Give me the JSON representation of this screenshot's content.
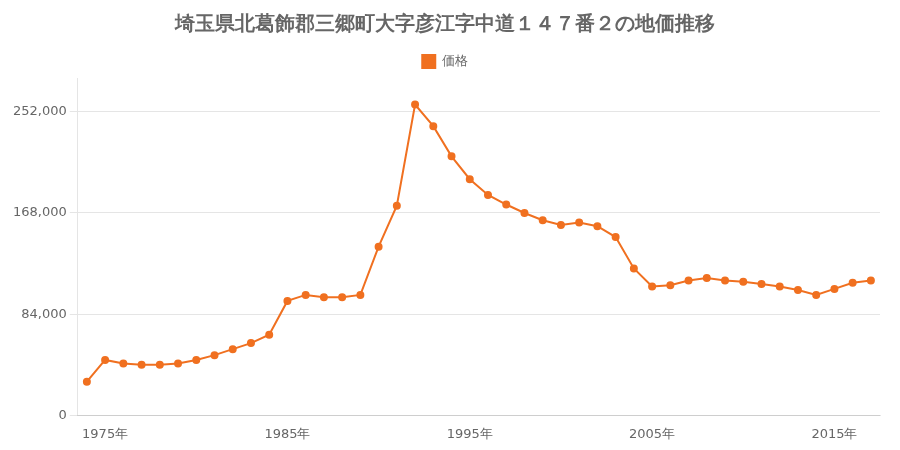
{
  "chart_data": {
    "type": "line",
    "title": "埼玉県北葛飾郡三郷町大字彦江字中道１４７番２の地価推移",
    "x": [
      1974,
      1975,
      1976,
      1977,
      1978,
      1979,
      1980,
      1981,
      1982,
      1983,
      1984,
      1985,
      1986,
      1987,
      1988,
      1989,
      1990,
      1991,
      1992,
      1993,
      1994,
      1995,
      1996,
      1997,
      1998,
      1999,
      2000,
      2001,
      2002,
      2003,
      2004,
      2005,
      2006,
      2007,
      2008,
      2009,
      2010,
      2011,
      2012,
      2013,
      2014,
      2015,
      2016,
      2017
    ],
    "series": [
      {
        "name": "価格",
        "color": "#f07020",
        "marker": "circle",
        "line_style": "solid",
        "values": [
          28000,
          46000,
          43000,
          42000,
          42000,
          43000,
          46000,
          50000,
          55000,
          60000,
          67000,
          95000,
          100000,
          98000,
          98000,
          100000,
          140000,
          174000,
          258000,
          240000,
          215000,
          196000,
          183000,
          175000,
          168000,
          162000,
          158000,
          160000,
          157000,
          148000,
          122000,
          107000,
          108000,
          112000,
          114000,
          112000,
          111000,
          109000,
          107000,
          104000,
          100000,
          105000,
          110000,
          112000
        ]
      }
    ],
    "xlim": [
      1973.5,
      2017.5
    ],
    "xticks": [
      {
        "value": 1975,
        "label": "1975年"
      },
      {
        "value": 1985,
        "label": "1985年"
      },
      {
        "value": 1995,
        "label": "1995年"
      },
      {
        "value": 2005,
        "label": "2005年"
      },
      {
        "value": 2015,
        "label": "2015年"
      }
    ],
    "ylim": [
      0,
      280000
    ],
    "yticks": [
      0,
      {
        "value": 84000,
        "label": "84,000"
      },
      {
        "value": 168000,
        "label": "168,000"
      },
      {
        "value": 252000,
        "label": "252,000"
      }
    ],
    "grid": "y",
    "legend": "top"
  }
}
